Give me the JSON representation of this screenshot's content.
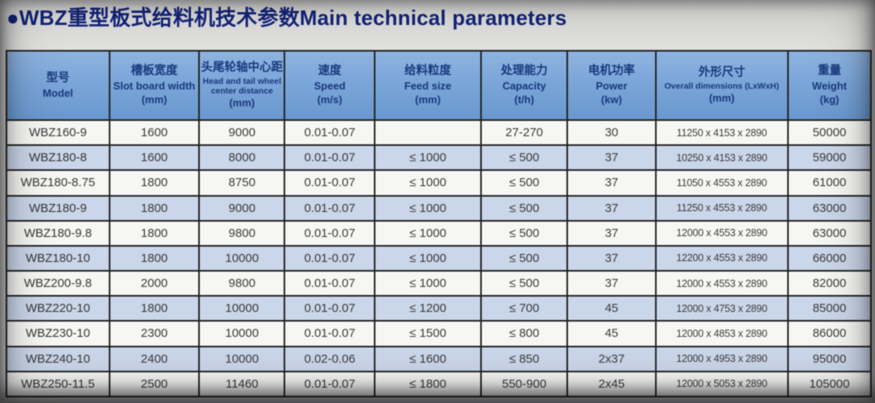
{
  "title": "●WBZ重型板式给料机技术参数Main technical parameters",
  "table": {
    "columns": [
      {
        "key": "model",
        "zh": "型号",
        "en": "Model",
        "unit": ""
      },
      {
        "key": "slot-board-width",
        "zh": "槽板宽度",
        "en": "Slot board width",
        "unit": "(mm)"
      },
      {
        "key": "center-distance",
        "zh": "头尾轮轴中心距",
        "en": "Head and tail wheel center distance",
        "unit": "(mm)"
      },
      {
        "key": "speed",
        "zh": "速度",
        "en": "Speed",
        "unit": "(m/s)"
      },
      {
        "key": "feed-size",
        "zh": "给料粒度",
        "en": "Feed size",
        "unit": "(mm)"
      },
      {
        "key": "capacity",
        "zh": "处理能力",
        "en": "Capacity",
        "unit": "(t/h)"
      },
      {
        "key": "power",
        "zh": "电机功率",
        "en": "Power",
        "unit": "(kw)"
      },
      {
        "key": "overall-dimensions",
        "zh": "外形尺寸",
        "en": "Overall dimensions (LxWxH)",
        "unit": "(mm)"
      },
      {
        "key": "weight",
        "zh": "重量",
        "en": "Weight",
        "unit": "(kg)"
      }
    ],
    "rows": [
      [
        "WBZ160-9",
        "1600",
        "9000",
        "0.01-0.07",
        "",
        "27-270",
        "30",
        "11250 x 4153 x 2890",
        "50000"
      ],
      [
        "WBZ180-8",
        "1600",
        "8000",
        "0.01-0.07",
        "≤ 1000",
        "≤ 500",
        "37",
        "10250 x 4153 x 2890",
        "59000"
      ],
      [
        "WBZ180-8.75",
        "1800",
        "8750",
        "0.01-0.07",
        "≤ 1000",
        "≤ 500",
        "37",
        "11050 x 4553 x 2890",
        "61000"
      ],
      [
        "WBZ180-9",
        "1800",
        "9000",
        "0.01-0.07",
        "≤ 1000",
        "≤ 500",
        "37",
        "11250 x 4553 x 2890",
        "63000"
      ],
      [
        "WBZ180-9.8",
        "1800",
        "9800",
        "0.01-0.07",
        "≤ 1000",
        "≤ 500",
        "37",
        "12000 x 4553 x 2890",
        "63000"
      ],
      [
        "WBZ180-10",
        "1800",
        "10000",
        "0.01-0.07",
        "≤ 1000",
        "≤ 500",
        "37",
        "12200 x 4553 x 2890",
        "66000"
      ],
      [
        "WBZ200-9.8",
        "2000",
        "9800",
        "0.01-0.07",
        "≤ 1000",
        "≤ 500",
        "37",
        "12000 x 4553 x 2890",
        "82000"
      ],
      [
        "WBZ220-10",
        "1800",
        "10000",
        "0.01-0.07",
        "≤ 1200",
        "≤ 700",
        "45",
        "12000 x 4753 x 2890",
        "85000"
      ],
      [
        "WBZ230-10",
        "2300",
        "10000",
        "0.01-0.07",
        "≤ 1500",
        "≤ 800",
        "45",
        "12000 x 4853 x 2890",
        "86000"
      ],
      [
        "WBZ240-10",
        "2400",
        "10000",
        "0.02-0.06",
        "≤ 1600",
        "≤ 850",
        "2x37",
        "12000 x 4953 x 2890",
        "95000"
      ],
      [
        "WBZ250-11.5",
        "2500",
        "11460",
        "0.01-0.07",
        "≤ 1800",
        "550-900",
        "2x45",
        "12000 x 5053 x 2890",
        "105000"
      ]
    ]
  }
}
